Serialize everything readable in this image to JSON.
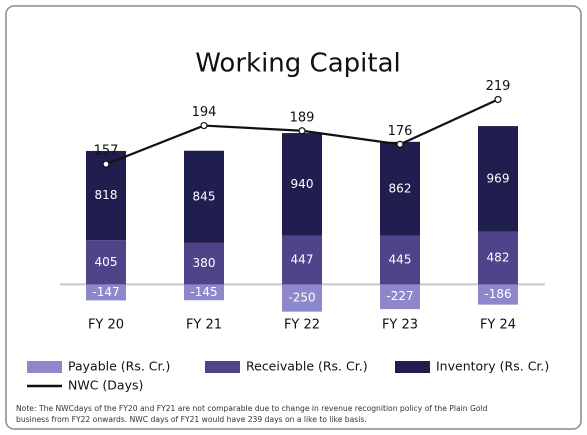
{
  "chart_data": {
    "type": "bar",
    "stacked": true,
    "title": "Working Capital",
    "categories": [
      "FY 20",
      "FY 21",
      "FY 22",
      "FY 23",
      "FY 24"
    ],
    "series": [
      {
        "name": "Payable (Rs. Cr.)",
        "color": "#8c88cb",
        "values": [
          -147,
          -145,
          -250,
          -227,
          -186
        ]
      },
      {
        "name": "Receivable (Rs. Cr.)",
        "color": "#4f4389",
        "values": [
          405,
          380,
          447,
          445,
          482
        ]
      },
      {
        "name": "Inventory (Rs. Cr.)",
        "color": "#201e4e",
        "values": [
          818,
          845,
          940,
          862,
          969
        ]
      },
      {
        "name": "NWC (Days)",
        "type": "line",
        "axis": "y2",
        "color": "#111111",
        "values": [
          157,
          194,
          189,
          176,
          219
        ]
      }
    ],
    "ylim": [
      -400,
      1800
    ],
    "y2lim": [
      0,
      230
    ],
    "note": [
      "Note: The NWCdays of the FY20 and FY21 are not comparable due to change in revenue recognition policy of the Plain Gold",
      "business from FY22 onwards. NWC days of FY21 would have 239 days on a like to like basis."
    ]
  }
}
